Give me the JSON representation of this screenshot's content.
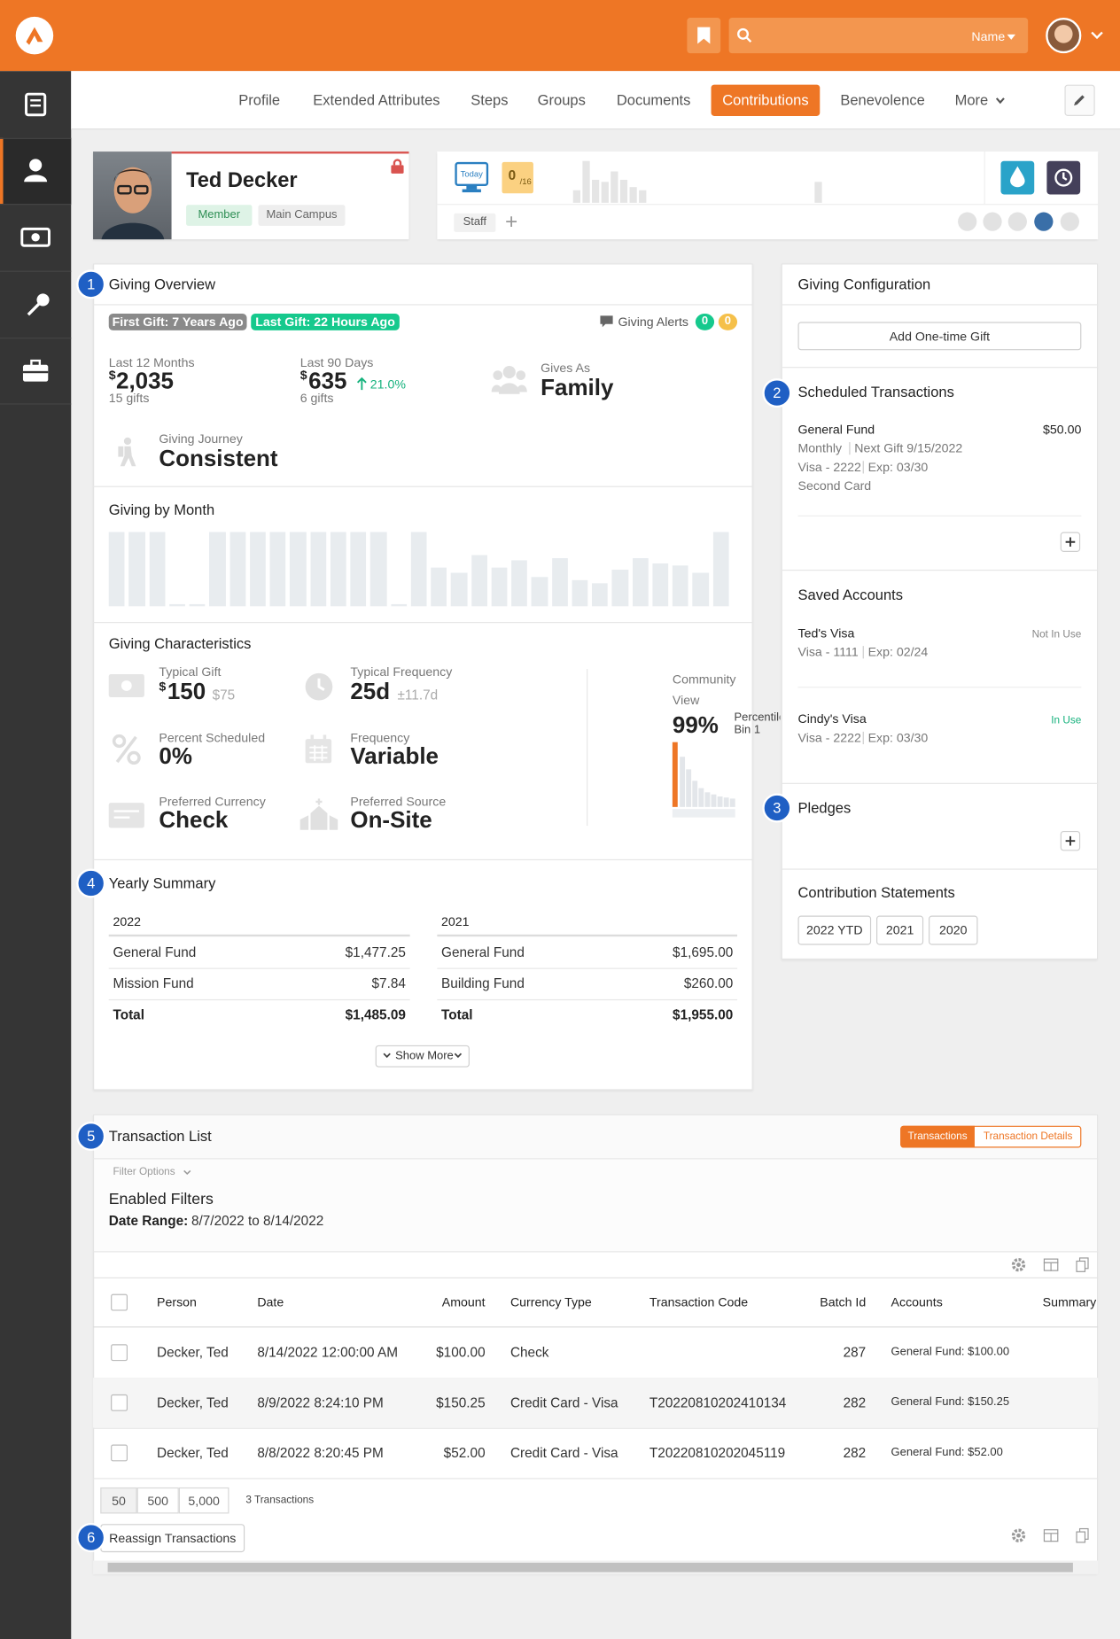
{
  "header": {
    "search_label": "Name"
  },
  "nav_tabs": [
    "Profile",
    "Extended Attributes",
    "Steps",
    "Groups",
    "Documents",
    "Contributions",
    "Benevolence",
    "More"
  ],
  "active_tab": 5,
  "person": {
    "name": "Ted Decker",
    "badges": [
      "Member",
      "Main Campus"
    ]
  },
  "badge_bar": {
    "today": "Today",
    "attendance": "0",
    "attendance_of": "/16",
    "tag": "Staff"
  },
  "markers": [
    "1",
    "2",
    "3",
    "4",
    "5",
    "6"
  ],
  "giving_overview": {
    "title": "Giving Overview",
    "first_gift": "First Gift: 7 Years Ago",
    "last_gift": "Last Gift: 22 Hours Ago",
    "alerts_label": "Giving Alerts",
    "alert_counts": [
      "0",
      "0"
    ],
    "last_12_months": {
      "label": "Last 12 Months",
      "symbol": "$",
      "amount": "2,035",
      "gifts": "15 gifts"
    },
    "last_90_days": {
      "label": "Last 90 Days",
      "symbol": "$",
      "amount": "635",
      "change": "21.0%",
      "gifts": "6 gifts"
    },
    "gives_as": {
      "label": "Gives As",
      "value": "Family"
    },
    "giving_journey": {
      "label": "Giving Journey",
      "value": "Consistent"
    }
  },
  "giving_by_month": {
    "title": "Giving by Month",
    "values": [
      70,
      70,
      70,
      2,
      2,
      70,
      70,
      70,
      70,
      70,
      70,
      70,
      70,
      70,
      2,
      70,
      36,
      32,
      48,
      36,
      43,
      28,
      45,
      25,
      22,
      35,
      45,
      40,
      38,
      32,
      70
    ]
  },
  "giving_characteristics": {
    "title": "Giving Characteristics",
    "typical_gift": {
      "label": "Typical Gift",
      "symbol": "$",
      "amount": "150",
      "secondary": "$75"
    },
    "typical_frequency": {
      "label": "Typical Frequency",
      "value": "25d",
      "secondary": "±11.7d"
    },
    "percent_scheduled": {
      "label": "Percent Scheduled",
      "value": "0%"
    },
    "frequency": {
      "label": "Frequency",
      "value": "Variable"
    },
    "preferred_currency": {
      "label": "Preferred Currency",
      "value": "Check"
    },
    "preferred_source": {
      "label": "Preferred Source",
      "value": "On-Site"
    },
    "community_view": {
      "label_1": "Community",
      "label_2": "View",
      "value": "99%",
      "percentile": "Percentile",
      "bin": "Bin 1"
    }
  },
  "yearly_summary": {
    "title": "Yearly Summary",
    "years": [
      {
        "year": "2022",
        "rows": [
          [
            "General Fund",
            "$1,477.25"
          ],
          [
            "Mission Fund",
            "$7.84"
          ]
        ],
        "total_label": "Total",
        "total": "$1,485.09"
      },
      {
        "year": "2021",
        "rows": [
          [
            "General Fund",
            "$1,695.00"
          ],
          [
            "Building Fund",
            "$260.00"
          ]
        ],
        "total_label": "Total",
        "total": "$1,955.00"
      }
    ],
    "show_more": "Show More"
  },
  "giving_configuration": {
    "title": "Giving Configuration",
    "add_gift": "Add One-time Gift",
    "scheduled_title": "Scheduled Transactions",
    "scheduled": {
      "fund": "General Fund",
      "amount": "$50.00",
      "frequency": "Monthly",
      "next_gift": "Next Gift 9/15/2022",
      "account": "Visa - 2222",
      "expiry": "Exp: 03/30",
      "name": "Second Card"
    },
    "saved_title": "Saved Accounts",
    "saved_accounts": [
      {
        "name": "Ted's Visa",
        "status": "Not In Use",
        "account": "Visa - 1111",
        "expiry": "Exp: 02/24"
      },
      {
        "name": "Cindy's Visa",
        "status": "In Use",
        "account": "Visa - 2222",
        "expiry": "Exp: 03/30"
      }
    ],
    "pledges_title": "Pledges",
    "statements_title": "Contribution Statements",
    "statements": [
      "2022 YTD",
      "2021",
      "2020"
    ]
  },
  "transaction_list": {
    "title": "Transaction List",
    "toggle": [
      "Transactions",
      "Transaction Details"
    ],
    "filter_options": "Filter Options",
    "enabled_filters": "Enabled Filters",
    "date_range_label": "Date Range:",
    "date_range": "8/7/2022 to 8/14/2022",
    "columns": [
      "Person",
      "Date",
      "Amount",
      "Currency Type",
      "Transaction Code",
      "Batch Id",
      "Accounts",
      "Summary"
    ],
    "rows": [
      {
        "person": "Decker, Ted",
        "date": "8/14/2022 12:00:00 AM",
        "amount": "$100.00",
        "currency_type": "Check",
        "batch_id": "287",
        "accounts": "General Fund: $100.00"
      },
      {
        "person": "Decker, Ted",
        "date": "8/9/2022 8:24:10 PM",
        "amount": "$150.25",
        "currency_type": "Credit Card - Visa",
        "transaction_code": "T20220810202410134",
        "batch_id": "282",
        "accounts": "General Fund: $150.25"
      },
      {
        "person": "Decker, Ted",
        "date": "8/8/2022 8:20:45 PM",
        "amount": "$52.00",
        "currency_type": "Credit Card - Visa",
        "transaction_code": "T20220810202045119",
        "batch_id": "282",
        "accounts": "General Fund: $52.00"
      }
    ],
    "page_sizes": [
      "50",
      "500",
      "5,000"
    ],
    "count": "3 Transactions",
    "reassign": "Reassign Transactions"
  }
}
